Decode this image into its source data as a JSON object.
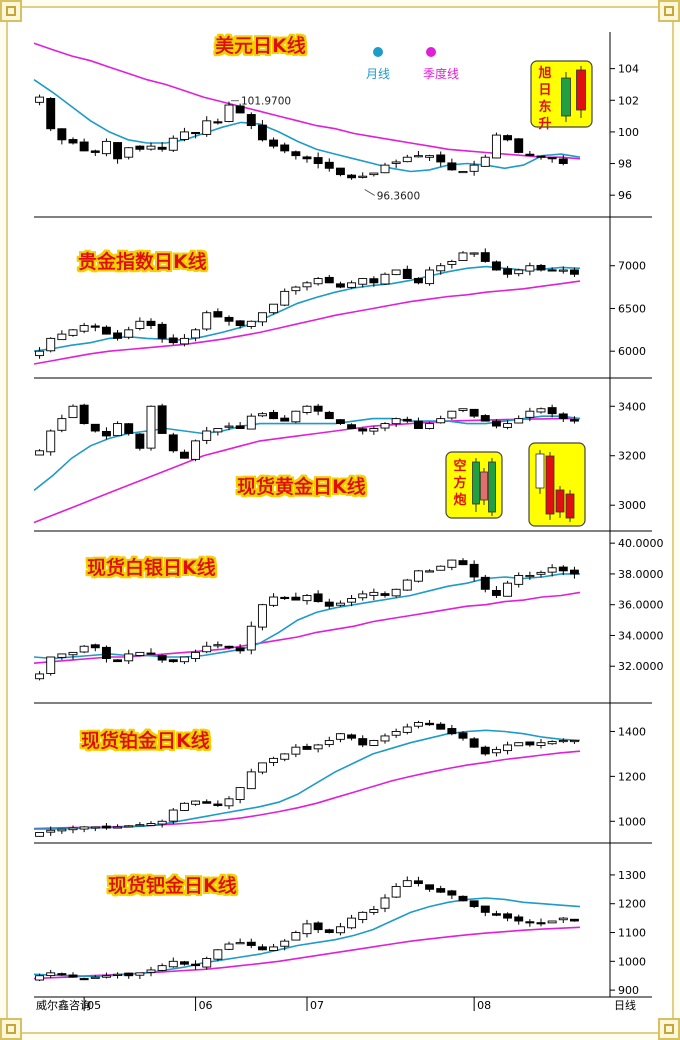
{
  "chart_data": [
    {
      "type": "candlestick",
      "title": "美元日K线",
      "legend": [
        "月线",
        "季度线"
      ],
      "legend_colors": [
        "#1e9bc8",
        "#e020d8"
      ],
      "ylim": [
        95,
        106
      ],
      "yticks": [
        "104",
        "102",
        "100",
        "98",
        "96"
      ],
      "ytick_values": [
        104,
        102,
        100,
        98,
        96
      ],
      "close": [
        102.2,
        100.2,
        99.5,
        99.3,
        98.8,
        98.7,
        99.4,
        98.3,
        99.0,
        98.9,
        99.1,
        98.9,
        99.6,
        100.0,
        99.9,
        100.7,
        100.6,
        101.7,
        101.2,
        100.4,
        99.5,
        99.1,
        98.8,
        98.5,
        98.3,
        98.0,
        97.7,
        97.3,
        97.1,
        97.2,
        97.4,
        97.9,
        98.1,
        98.4,
        98.5,
        98.5,
        98.1,
        97.6,
        97.5,
        97.9,
        98.4,
        99.8,
        99.5,
        98.7,
        98.5,
        98.4,
        98.3,
        98.0
      ],
      "quarterly_ma": [
        105.6,
        105.2,
        104.8,
        104.5,
        104.1,
        103.7,
        103.3,
        103.0,
        102.6,
        102.2,
        101.9,
        101.6,
        101.3,
        101.0,
        100.7,
        100.4,
        100.2,
        99.9,
        99.7,
        99.5,
        99.3,
        99.1,
        98.9,
        98.8,
        98.7,
        98.6,
        98.5,
        98.4,
        98.4,
        98.3
      ],
      "monthly_ma": [
        103.3,
        102.5,
        101.6,
        100.7,
        100.0,
        99.5,
        99.3,
        99.3,
        99.5,
        99.9,
        100.3,
        100.6,
        100.5,
        100.0,
        99.4,
        98.9,
        98.6,
        98.3,
        98.0,
        97.7,
        97.5,
        97.6,
        97.9,
        98.0,
        97.9,
        97.7,
        97.9,
        98.5,
        98.6,
        98.4
      ],
      "annotations": [
        {
          "text": "101.9700",
          "x_index": 17,
          "y": 101.97
        },
        {
          "text": "96.3600",
          "x_index": 29,
          "y": 96.36
        }
      ],
      "badge": {
        "label": "旭日东升",
        "chars": [
          "旭",
          "日",
          "东",
          "升"
        ]
      }
    },
    {
      "type": "candlestick",
      "title": "贵金指数日K线",
      "ylim": [
        5780,
        7500
      ],
      "yticks": [
        "7000",
        "6500",
        "6000"
      ],
      "ytick_values": [
        7000,
        6500,
        6000
      ],
      "close": [
        6000,
        6150,
        6200,
        6250,
        6300,
        6280,
        6200,
        6150,
        6250,
        6350,
        6300,
        6150,
        6100,
        6150,
        6250,
        6450,
        6400,
        6350,
        6300,
        6350,
        6450,
        6550,
        6700,
        6750,
        6800,
        6850,
        6800,
        6750,
        6800,
        6850,
        6800,
        6900,
        6950,
        6850,
        6800,
        6950,
        7000,
        7050,
        7150,
        7150,
        7050,
        6950,
        6900,
        6950,
        7000,
        6950,
        6950,
        6950,
        6900
      ],
      "monthly_ma": [
        6000,
        6030,
        6070,
        6100,
        6150,
        6170,
        6150,
        6140,
        6130,
        6170,
        6220,
        6280,
        6360,
        6460,
        6560,
        6630,
        6690,
        6740,
        6770,
        6790,
        6830,
        6880,
        6930,
        6970,
        6990,
        6970,
        6950,
        6960,
        6980,
        6970
      ],
      "quarterly_ma": [
        5850,
        5890,
        5930,
        5970,
        6000,
        6020,
        6040,
        6060,
        6080,
        6110,
        6140,
        6180,
        6220,
        6270,
        6320,
        6370,
        6420,
        6460,
        6500,
        6540,
        6580,
        6610,
        6640,
        6660,
        6690,
        6710,
        6730,
        6760,
        6790,
        6820
      ]
    },
    {
      "type": "candlestick",
      "title": "现货黄金日K线",
      "ylim": [
        2920,
        3490
      ],
      "yticks": [
        "3400",
        "3200",
        "3000"
      ],
      "ytick_values": [
        3400,
        3200,
        3000
      ],
      "close": [
        3220,
        3300,
        3350,
        3400,
        3330,
        3300,
        3280,
        3330,
        3290,
        3230,
        3400,
        3290,
        3220,
        3190,
        3260,
        3300,
        3310,
        3320,
        3310,
        3360,
        3370,
        3350,
        3340,
        3380,
        3400,
        3380,
        3350,
        3330,
        3310,
        3300,
        3310,
        3330,
        3350,
        3340,
        3310,
        3330,
        3350,
        3380,
        3390,
        3360,
        3340,
        3320,
        3330,
        3350,
        3380,
        3390,
        3370,
        3350,
        3340
      ],
      "monthly_ma": [
        3060,
        3120,
        3190,
        3240,
        3270,
        3290,
        3300,
        3310,
        3300,
        3290,
        3300,
        3320,
        3330,
        3330,
        3330,
        3330,
        3330,
        3340,
        3350,
        3350,
        3340,
        3340,
        3340,
        3330,
        3330,
        3340,
        3350,
        3360,
        3360,
        3350
      ],
      "quarterly_ma": [
        2930,
        2960,
        2990,
        3020,
        3050,
        3080,
        3110,
        3140,
        3170,
        3200,
        3220,
        3240,
        3260,
        3270,
        3280,
        3290,
        3300,
        3310,
        3320,
        3325,
        3330,
        3335,
        3340,
        3342,
        3344,
        3346,
        3348,
        3349,
        3350,
        3350
      ],
      "badges": [
        {
          "label": "空方炮",
          "chars": [
            "空",
            "方",
            "炮"
          ]
        },
        {
          "label": "reversal-pattern"
        }
      ]
    },
    {
      "type": "candlestick",
      "title": "现货白银日K线",
      "ylim": [
        30,
        40.4
      ],
      "yticks": [
        "40.0000",
        "38.0000",
        "36.0000",
        "34.0000",
        "32.0000"
      ],
      "ytick_values": [
        40,
        38,
        36,
        34,
        32
      ],
      "close": [
        31.5,
        32.6,
        32.8,
        32.9,
        33.3,
        33.2,
        32.5,
        32.3,
        32.8,
        32.9,
        32.8,
        32.4,
        32.3,
        32.6,
        32.9,
        33.3,
        33.4,
        33.2,
        33.0,
        34.6,
        36.0,
        36.5,
        36.4,
        36.3,
        36.6,
        36.2,
        35.9,
        36.1,
        36.4,
        36.7,
        36.8,
        36.6,
        37.0,
        37.6,
        38.2,
        38.2,
        38.5,
        38.9,
        38.6,
        37.8,
        37.0,
        36.6,
        37.4,
        37.9,
        37.9,
        38.1,
        38.4,
        38.2,
        38.0
      ],
      "monthly_ma": [
        32.6,
        32.5,
        32.6,
        32.7,
        32.8,
        32.7,
        32.7,
        32.6,
        32.6,
        32.7,
        32.9,
        33.1,
        33.5,
        34.2,
        35.0,
        35.5,
        35.8,
        36.0,
        36.2,
        36.4,
        36.6,
        36.9,
        37.2,
        37.4,
        37.7,
        37.8,
        37.7,
        37.8,
        38.0,
        38.0
      ],
      "quarterly_ma": [
        32.2,
        32.3,
        32.4,
        32.5,
        32.6,
        32.6,
        32.7,
        32.8,
        32.9,
        33.0,
        33.1,
        33.3,
        33.5,
        33.7,
        33.9,
        34.2,
        34.4,
        34.6,
        34.9,
        35.1,
        35.3,
        35.5,
        35.7,
        35.9,
        36.0,
        36.2,
        36.3,
        36.5,
        36.6,
        36.8
      ]
    },
    {
      "type": "candlestick",
      "title": "现货铂金日K线",
      "ylim": [
        930,
        1500
      ],
      "yticks": [
        "1400",
        "1200",
        "1000"
      ],
      "ytick_values": [
        1400,
        1200,
        1000
      ],
      "close": [
        950,
        960,
        965,
        970,
        975,
        975,
        970,
        975,
        980,
        985,
        990,
        1000,
        1050,
        1080,
        1090,
        1080,
        1070,
        1100,
        1150,
        1220,
        1260,
        1280,
        1300,
        1330,
        1320,
        1340,
        1360,
        1390,
        1370,
        1340,
        1360,
        1380,
        1400,
        1420,
        1440,
        1430,
        1410,
        1390,
        1370,
        1330,
        1300,
        1320,
        1340,
        1350,
        1340,
        1350,
        1355,
        1360,
        1360
      ],
      "monthly_ma": [
        965,
        966,
        968,
        970,
        972,
        975,
        980,
        990,
        1005,
        1020,
        1035,
        1050,
        1065,
        1085,
        1120,
        1170,
        1220,
        1260,
        1300,
        1325,
        1350,
        1370,
        1390,
        1400,
        1405,
        1400,
        1390,
        1375,
        1365,
        1360
      ],
      "quarterly_ma": [
        968,
        970,
        972,
        973,
        975,
        977,
        980,
        985,
        990,
        997,
        1005,
        1015,
        1028,
        1043,
        1060,
        1080,
        1105,
        1130,
        1155,
        1180,
        1200,
        1218,
        1235,
        1250,
        1262,
        1275,
        1285,
        1295,
        1305,
        1312
      ]
    },
    {
      "type": "candlestick",
      "title": "现货钯金日K线",
      "ylim": [
        890,
        1390
      ],
      "yticks": [
        "1300",
        "1200",
        "1100",
        "1000",
        "900"
      ],
      "ytick_values": [
        1300,
        1200,
        1100,
        1000,
        900
      ],
      "x_tick_labels": [
        "05",
        "06",
        "07",
        "08"
      ],
      "x_tick_index": [
        4,
        14,
        24,
        39
      ],
      "x_axis_unit": "日线",
      "footer_text": "威尔鑫咨询",
      "close": [
        950,
        960,
        955,
        945,
        940,
        945,
        950,
        955,
        950,
        960,
        970,
        985,
        1000,
        990,
        985,
        1010,
        1040,
        1060,
        1065,
        1055,
        1040,
        1050,
        1070,
        1100,
        1130,
        1110,
        1100,
        1120,
        1150,
        1170,
        1180,
        1220,
        1260,
        1280,
        1270,
        1250,
        1240,
        1230,
        1210,
        1190,
        1170,
        1160,
        1150,
        1140,
        1135,
        1130,
        1140,
        1150,
        1140
      ],
      "monthly_ma": [
        955,
        952,
        950,
        948,
        950,
        955,
        960,
        970,
        980,
        995,
        1005,
        1015,
        1025,
        1040,
        1055,
        1065,
        1075,
        1090,
        1110,
        1140,
        1170,
        1190,
        1205,
        1215,
        1220,
        1215,
        1205,
        1200,
        1195,
        1190
      ],
      "quarterly_ma": [
        940,
        943,
        946,
        950,
        953,
        956,
        960,
        964,
        968,
        972,
        978,
        985,
        992,
        1000,
        1010,
        1020,
        1030,
        1040,
        1050,
        1060,
        1070,
        1078,
        1085,
        1092,
        1098,
        1103,
        1108,
        1112,
        1115,
        1118
      ]
    }
  ]
}
